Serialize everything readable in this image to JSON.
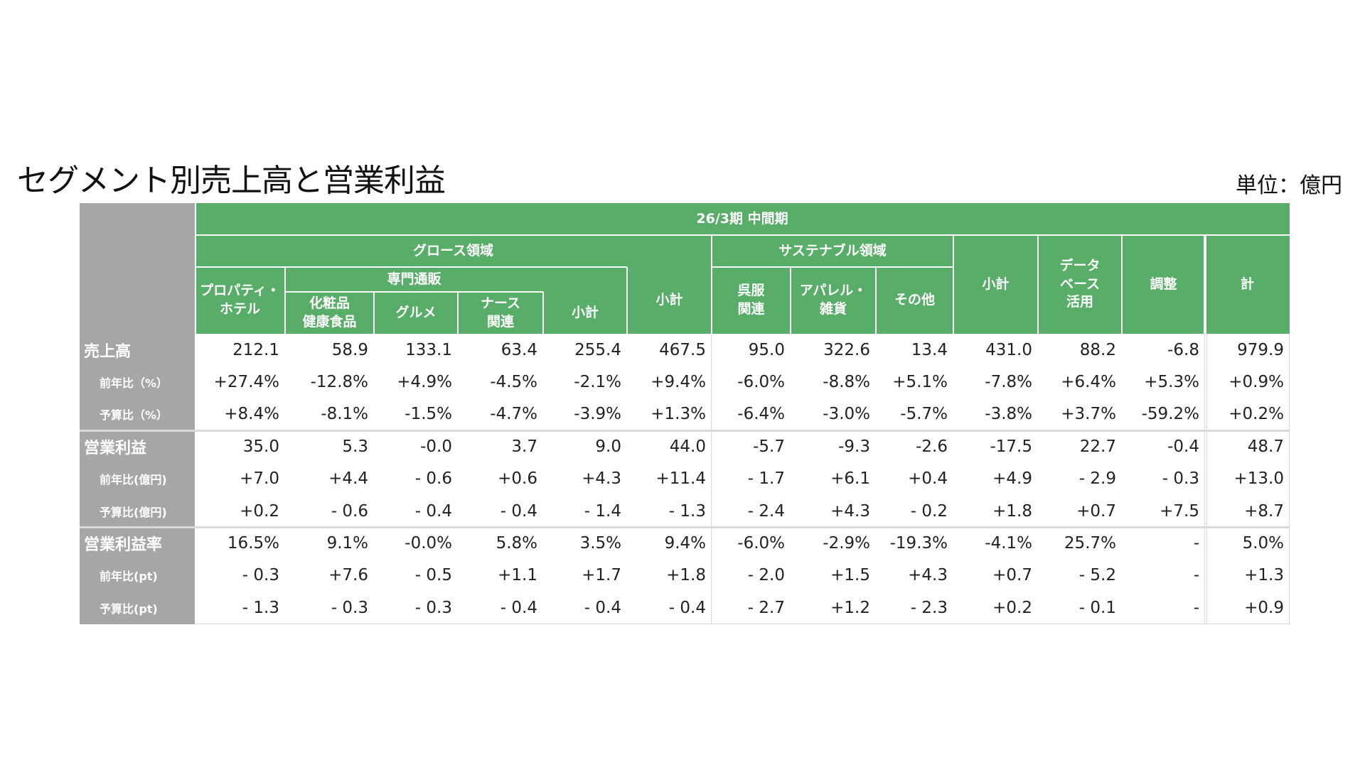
{
  "title": "セグメント別売上高と営業利益",
  "unit": "単位：億円",
  "header": {
    "period": "26/3期 中間期",
    "growth": "グロース領域",
    "sustainable": "サステナブル領域",
    "mailorder": "専門通販",
    "columns": [
      "プロパティ・\nホテル",
      "化粧品\n健康食品",
      "グルメ",
      "ナース\n関連",
      "小計",
      "小計",
      "呉服\n関連",
      "アパレル・\n雑貨",
      "その他",
      "小計",
      "データ\nベース\n活用",
      "調整",
      "計"
    ]
  },
  "rows": [
    {
      "label": "売上高",
      "type": "main",
      "values": [
        "212.1",
        "58.9",
        "133.1",
        "63.4",
        "255.4",
        "467.5",
        "95.0",
        "322.6",
        "13.4",
        "431.0",
        "88.2",
        "-6.8",
        "979.9"
      ]
    },
    {
      "label": "前年比（%）",
      "type": "sub",
      "values": [
        "+27.4%",
        "-12.8%",
        "+4.9%",
        "-4.5%",
        "-2.1%",
        "+9.4%",
        "-6.0%",
        "-8.8%",
        "+5.1%",
        "-7.8%",
        "+6.4%",
        "+5.3%",
        "+0.9%"
      ]
    },
    {
      "label": "予算比（%）",
      "type": "sub",
      "values": [
        "+8.4%",
        "-8.1%",
        "-1.5%",
        "-4.7%",
        "-3.9%",
        "+1.3%",
        "-6.4%",
        "-3.0%",
        "-5.7%",
        "-3.8%",
        "+3.7%",
        "-59.2%",
        "+0.2%"
      ]
    },
    {
      "label": "営業利益",
      "type": "main",
      "values": [
        "35.0",
        "5.3",
        "-0.0",
        "3.7",
        "9.0",
        "44.0",
        "-5.7",
        "-9.3",
        "-2.6",
        "-17.5",
        "22.7",
        "-0.4",
        "48.7"
      ]
    },
    {
      "label": "前年比(億円)",
      "type": "sub",
      "values": [
        "+7.0",
        "+4.4",
        "- 0.6",
        "+0.6",
        "+4.3",
        "+11.4",
        "- 1.7",
        "+6.1",
        "+0.4",
        "+4.9",
        "- 2.9",
        "- 0.3",
        "+13.0"
      ]
    },
    {
      "label": "予算比(億円)",
      "type": "sub",
      "values": [
        "+0.2",
        "- 0.6",
        "- 0.4",
        "- 0.4",
        "- 1.4",
        "- 1.3",
        "- 2.4",
        "+4.3",
        "- 0.2",
        "+1.8",
        "+0.7",
        "+7.5",
        "+8.7"
      ]
    },
    {
      "label": "営業利益率",
      "type": "main",
      "values": [
        "16.5%",
        "9.1%",
        "-0.0%",
        "5.8%",
        "3.5%",
        "9.4%",
        "-6.0%",
        "-2.9%",
        "-19.3%",
        "-4.1%",
        "25.7%",
        "-",
        "5.0%"
      ]
    },
    {
      "label": "前年比(pt)",
      "type": "sub",
      "values": [
        "- 0.3",
        "+7.6",
        "- 0.5",
        "+1.1",
        "+1.7",
        "+1.8",
        "- 2.0",
        "+1.5",
        "+4.3",
        "+0.7",
        "- 5.2",
        "-",
        "+1.3"
      ]
    },
    {
      "label": "予算比(pt)",
      "type": "sub",
      "values": [
        "- 1.3",
        "- 0.3",
        "- 0.3",
        "- 0.4",
        "- 0.4",
        "- 0.4",
        "- 2.7",
        "+1.2",
        "- 2.3",
        "+0.2",
        "- 0.1",
        "-",
        "+0.9"
      ]
    }
  ],
  "colors": {
    "header_green": "#58ad68",
    "label_gray": "#a6a6a6"
  }
}
